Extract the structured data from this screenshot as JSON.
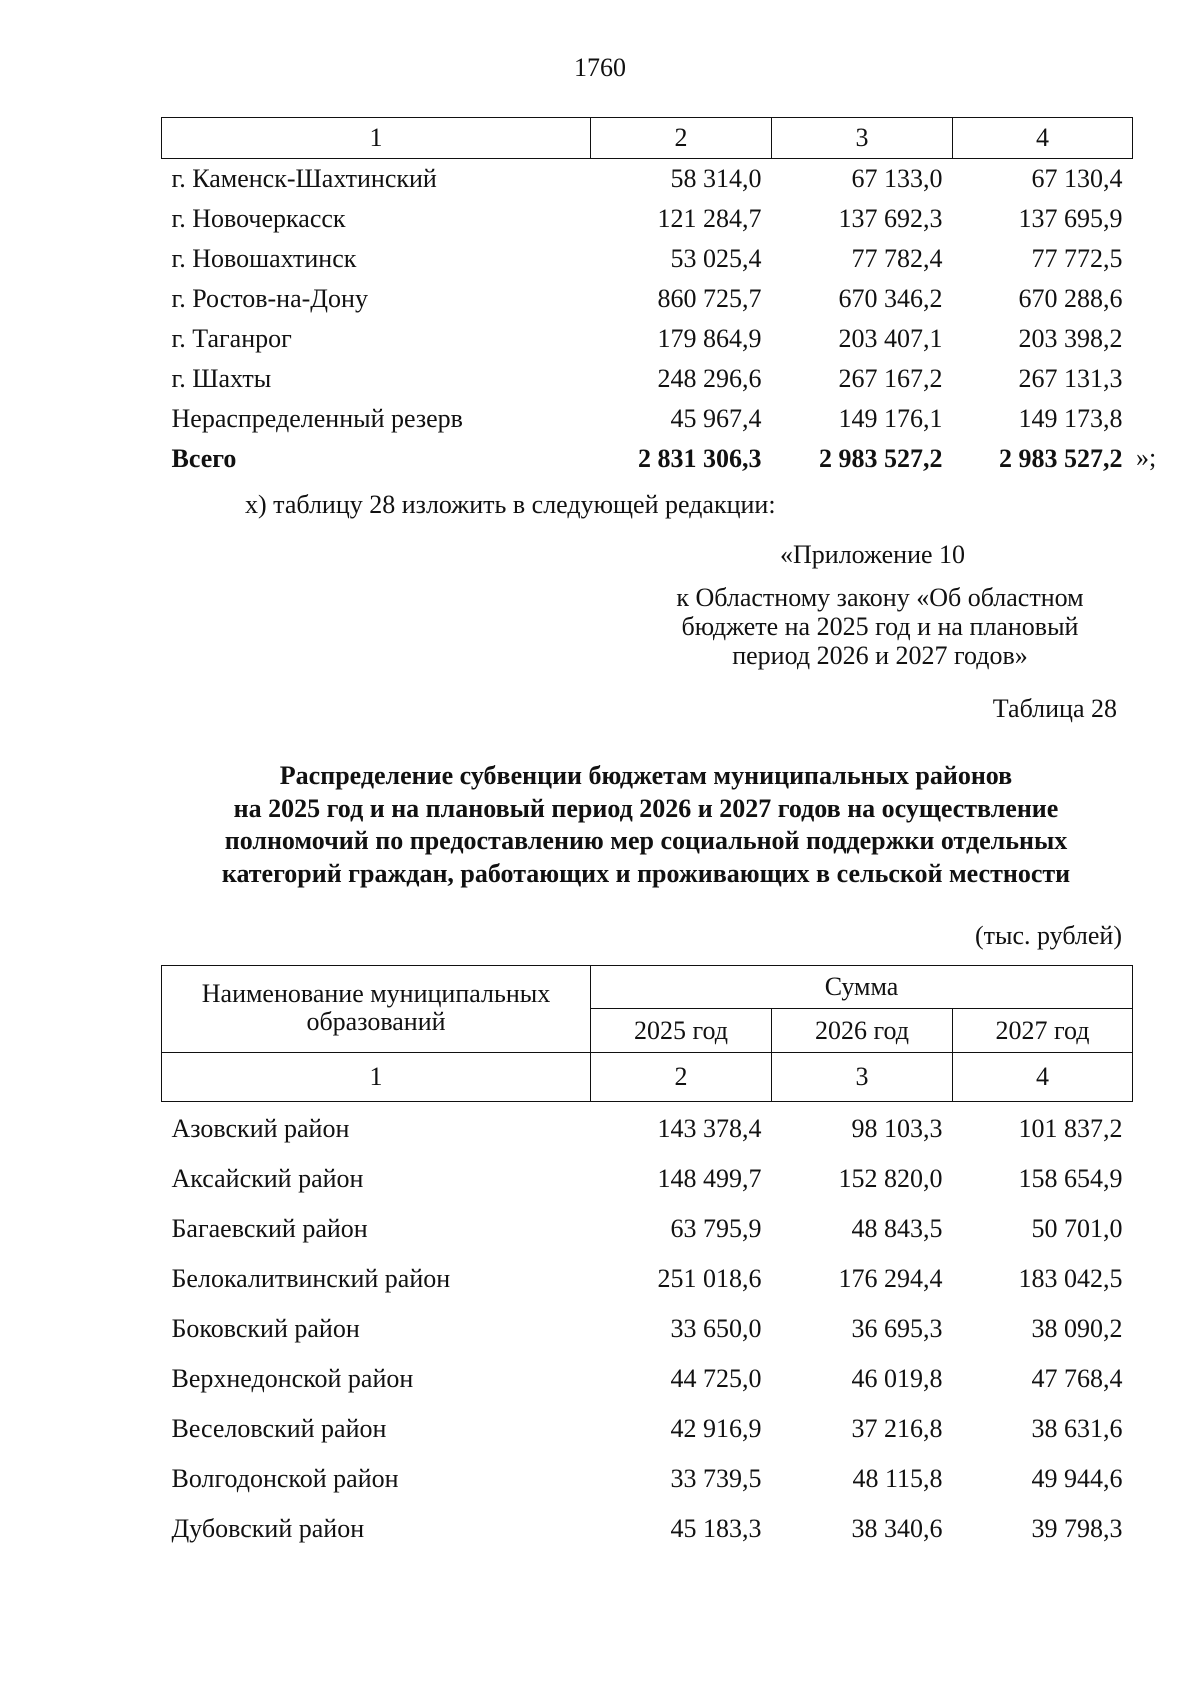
{
  "page_number": "1760",
  "table_top": {
    "column_numbers": [
      "1",
      "2",
      "3",
      "4"
    ],
    "rows": [
      {
        "name": "г. Каменск-Шахтинский",
        "v2025": "58 314,0",
        "v2026": "67 133,0",
        "v2027": "67 130,4"
      },
      {
        "name": "г. Новочеркасск",
        "v2025": "121 284,7",
        "v2026": "137 692,3",
        "v2027": "137 695,9"
      },
      {
        "name": "г. Новошахтинск",
        "v2025": "53 025,4",
        "v2026": "77 782,4",
        "v2027": "77 772,5"
      },
      {
        "name": "г. Ростов-на-Дону",
        "v2025": "860 725,7",
        "v2026": "670 346,2",
        "v2027": "670 288,6"
      },
      {
        "name": "г. Таганрог",
        "v2025": "179 864,9",
        "v2026": "203 407,1",
        "v2027": "203 398,2"
      },
      {
        "name": "г. Шахты",
        "v2025": "248 296,6",
        "v2026": "267 167,2",
        "v2027": "267 131,3"
      },
      {
        "name": "Нераспределенный резерв",
        "v2025": "45 967,4",
        "v2026": "149 176,1",
        "v2027": "149 173,8"
      }
    ],
    "total": {
      "name": "Всего",
      "v2025": "2 831 306,3",
      "v2026": "2 983 527,2",
      "v2027": "2 983 527,2"
    },
    "closing_quote": "»;"
  },
  "instruction": "х) таблицу 28 изложить в следующей редакции:",
  "appendix": {
    "title": "«Приложение 10",
    "line1": "к Областному закону «Об областном",
    "line2": "бюджете на 2025 год и на плановый",
    "line3": "период 2026 и 2027 годов»"
  },
  "table_label": "Таблица 28",
  "heading": [
    "Распределение субвенции бюджетам муниципальных районов",
    "на 2025 год и на плановый период 2026 и 2027 годов на осуществление",
    "полномочий по предоставлению мер социальной поддержки отдельных",
    "категорий граждан, работающих и проживающих в сельской местности"
  ],
  "units": "(тыс. рублей)",
  "table_main": {
    "header": {
      "name_col": "Наименование муниципальных образований",
      "sum": "Сумма",
      "years": [
        "2025 год",
        "2026 год",
        "2027 год"
      ]
    },
    "column_numbers": [
      "1",
      "2",
      "3",
      "4"
    ],
    "rows": [
      {
        "name": "Азовский район",
        "v2025": "143 378,4",
        "v2026": "98 103,3",
        "v2027": "101 837,2"
      },
      {
        "name": "Аксайский район",
        "v2025": "148 499,7",
        "v2026": "152 820,0",
        "v2027": "158 654,9"
      },
      {
        "name": "Багаевский район",
        "v2025": "63 795,9",
        "v2026": "48 843,5",
        "v2027": "50 701,0"
      },
      {
        "name": "Белокалитвинский район",
        "v2025": "251 018,6",
        "v2026": "176 294,4",
        "v2027": "183 042,5"
      },
      {
        "name": "Боковский район",
        "v2025": "33 650,0",
        "v2026": "36 695,3",
        "v2027": "38 090,2"
      },
      {
        "name": "Верхнедонской район",
        "v2025": "44 725,0",
        "v2026": "46 019,8",
        "v2027": "47 768,4"
      },
      {
        "name": "Веселовский район",
        "v2025": "42 916,9",
        "v2026": "37 216,8",
        "v2027": "38 631,6"
      },
      {
        "name": "Волгодонской район",
        "v2025": "33 739,5",
        "v2026": "48 115,8",
        "v2027": "49 944,6"
      },
      {
        "name": "Дубовский район",
        "v2025": "45 183,3",
        "v2026": "38 340,6",
        "v2027": "39 798,3"
      }
    ]
  }
}
